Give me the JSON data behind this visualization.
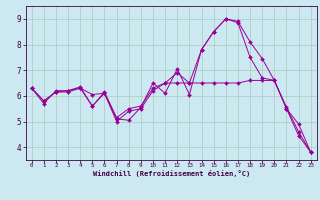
{
  "title": "",
  "xlabel": "Windchill (Refroidissement éolien,°C)",
  "background_color": "#cce8f0",
  "grid_color": "#aaccbb",
  "line_color": "#990099",
  "xlim": [
    -0.5,
    23.5
  ],
  "ylim": [
    3.5,
    9.5
  ],
  "yticks": [
    4,
    5,
    6,
    7,
    8,
    9
  ],
  "xticks": [
    0,
    1,
    2,
    3,
    4,
    5,
    6,
    7,
    8,
    9,
    10,
    11,
    12,
    13,
    14,
    15,
    16,
    17,
    18,
    19,
    20,
    21,
    22,
    23
  ],
  "series": [
    {
      "x": [
        0,
        1,
        2,
        3,
        4,
        5,
        6,
        7,
        8,
        9,
        10,
        11,
        12,
        13,
        14,
        15,
        16,
        17,
        18,
        19,
        20,
        21,
        22,
        23
      ],
      "y": [
        6.3,
        5.7,
        6.2,
        6.2,
        6.3,
        5.6,
        6.1,
        5.1,
        5.05,
        5.55,
        6.5,
        6.1,
        7.05,
        6.05,
        7.8,
        8.5,
        9.0,
        8.9,
        8.1,
        7.45,
        6.6,
        5.5,
        4.9,
        3.8
      ]
    },
    {
      "x": [
        0,
        1,
        2,
        3,
        4,
        5,
        6,
        7,
        8,
        9,
        10,
        11,
        12,
        13,
        14,
        15,
        16,
        17,
        18,
        19,
        20,
        21,
        22,
        23
      ],
      "y": [
        6.3,
        5.8,
        6.15,
        6.15,
        6.3,
        6.05,
        6.1,
        5.0,
        5.4,
        5.5,
        6.2,
        6.5,
        6.5,
        6.5,
        6.5,
        6.5,
        6.5,
        6.5,
        6.6,
        6.6,
        6.6,
        5.55,
        4.6,
        3.8
      ]
    },
    {
      "x": [
        0,
        1,
        2,
        3,
        4,
        5,
        6,
        7,
        8,
        9,
        10,
        11,
        12,
        13,
        14,
        15,
        16,
        17,
        18,
        19,
        20,
        21,
        22,
        23
      ],
      "y": [
        6.3,
        5.8,
        6.15,
        6.2,
        6.35,
        5.6,
        6.15,
        5.15,
        5.5,
        5.6,
        6.3,
        6.5,
        6.9,
        6.5,
        7.8,
        8.5,
        9.0,
        8.85,
        7.5,
        6.7,
        6.6,
        5.5,
        4.45,
        3.8
      ]
    }
  ],
  "tick_color": "#440044",
  "label_fontsize": 5.0,
  "tick_fontsize_x": 4.2,
  "tick_fontsize_y": 5.5,
  "linewidth": 0.7,
  "markersize": 2.0
}
